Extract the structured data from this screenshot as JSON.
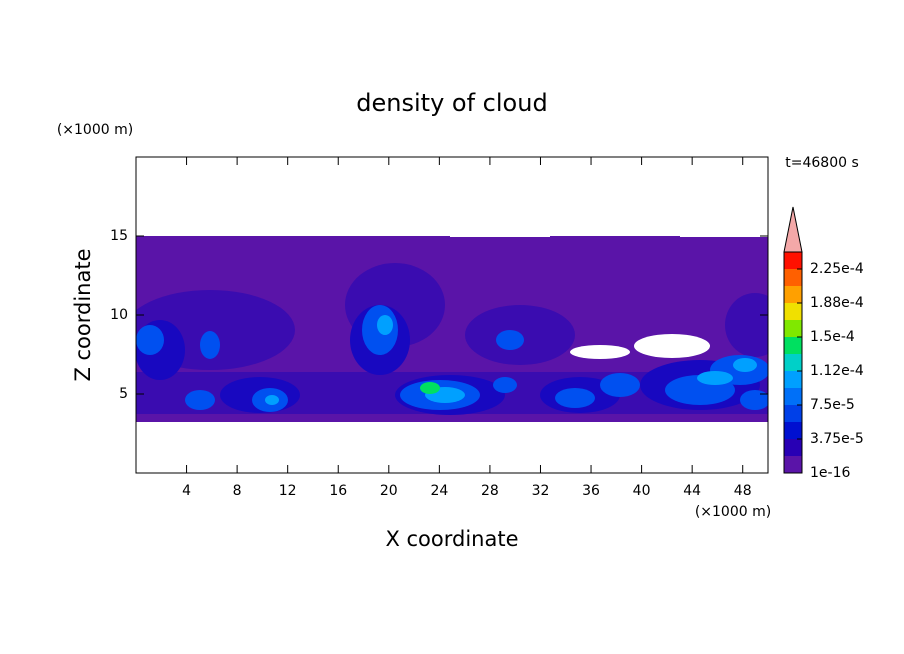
{
  "chart_data": {
    "type": "contour",
    "title": "density of cloud",
    "x_label": "X coordinate",
    "y_label": "Z coordinate",
    "x_unit": "(×1000 m)",
    "y_unit": "(×1000 m)",
    "annotation": "t=46800 s",
    "xlim": [
      0,
      50
    ],
    "ylim": [
      0,
      20
    ],
    "xticks": [
      4,
      8,
      12,
      16,
      20,
      24,
      28,
      32,
      36,
      40,
      44,
      48
    ],
    "yticks": [
      5,
      10,
      15
    ],
    "colorbar": {
      "clim": [
        1e-16,
        0.00024375
      ],
      "ticks": [
        {
          "value": 1e-16,
          "label": "1e-16"
        },
        {
          "value": 3.75e-05,
          "label": "3.75e-5"
        },
        {
          "value": 7.5e-05,
          "label": "7.5e-5"
        },
        {
          "value": 0.0001125,
          "label": "1.12e-4"
        },
        {
          "value": 0.00015,
          "label": "1.5e-4"
        },
        {
          "value": 0.0001875,
          "label": "1.88e-4"
        },
        {
          "value": 0.000225,
          "label": "2.25e-4"
        }
      ],
      "colors": [
        "#5a14a8",
        "#2800b4",
        "#0010d0",
        "#0040e8",
        "#0070f8",
        "#00a0ff",
        "#00d0c8",
        "#00e060",
        "#80e800",
        "#f0e000",
        "#ffa000",
        "#ff6000",
        "#ff1000"
      ],
      "extend_color": "#f4a8a8"
    }
  }
}
